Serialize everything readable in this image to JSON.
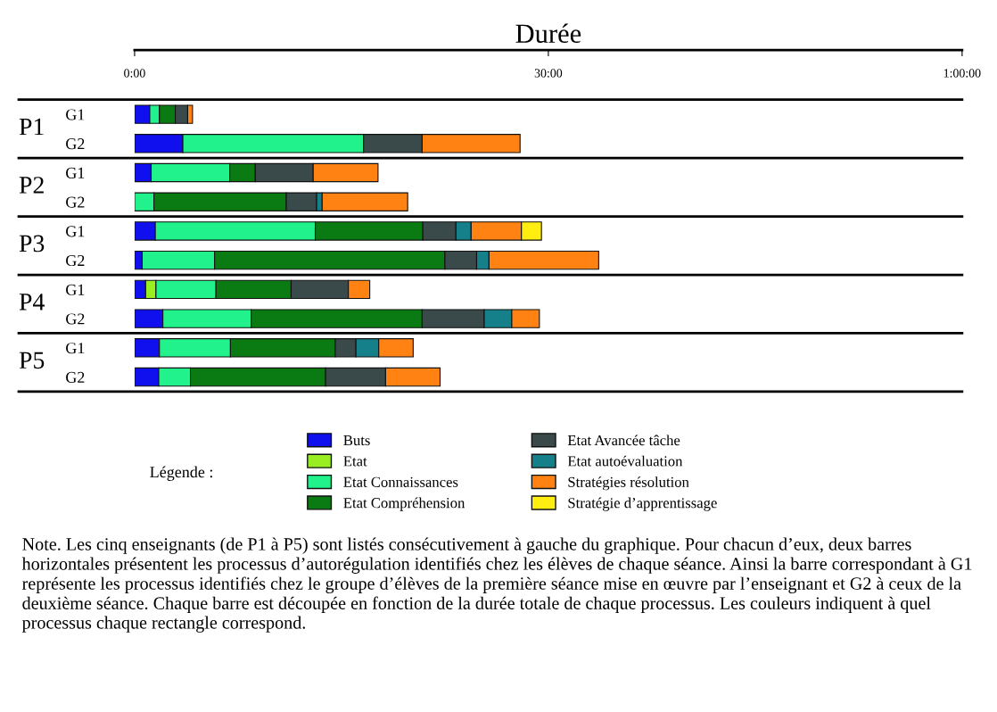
{
  "chart_data": {
    "type": "bar",
    "orientation": "horizontal",
    "stacked": true,
    "xlabel": "Durée",
    "categories": [
      "G1",
      "G2",
      "G1",
      "G2",
      "G1",
      "G2",
      "G1",
      "G2",
      "G1",
      "G2"
    ],
    "series": [
      {
        "name": "Buts",
        "color": "#1010ee",
        "values": [
          1.1,
          3.5,
          1.2,
          null,
          1.5,
          0.55,
          0.8,
          2.05,
          1.8,
          1.75
        ]
      },
      {
        "name": "Etat",
        "color": "#99ee22",
        "values": [
          null,
          null,
          null,
          null,
          null,
          null,
          0.75,
          null,
          null,
          null
        ]
      },
      {
        "name": "Etat Connaissances",
        "color": "#22f28c",
        "values": [
          0.7,
          13.1,
          5.7,
          1.4,
          11.6,
          5.25,
          4.35,
          6.4,
          5.15,
          2.3
        ]
      },
      {
        "name": "Etat Compréhension",
        "color": "#0a7a12",
        "values": [
          1.15,
          null,
          1.85,
          9.6,
          7.8,
          16.7,
          5.45,
          12.4,
          7.6,
          9.8
        ]
      },
      {
        "name": "Etat Avancée tâche",
        "color": "#3a4a4a",
        "values": [
          0.9,
          4.25,
          4.2,
          2.2,
          2.4,
          2.3,
          4.15,
          4.5,
          1.5,
          4.35
        ]
      },
      {
        "name": "Etat autoévaluation",
        "color": "#16808a",
        "values": [
          null,
          null,
          null,
          0.4,
          1.1,
          0.9,
          null,
          2.0,
          1.65,
          null
        ]
      },
      {
        "name": "Stratégies résolution",
        "color": "#ff8212",
        "values": [
          0.35,
          7.1,
          4.7,
          6.2,
          3.65,
          7.95,
          1.55,
          2.0,
          2.5,
          3.95
        ]
      },
      {
        "name": "Stratégie d’apprentissage",
        "color": "#ffee10",
        "values": [
          null,
          null,
          null,
          null,
          1.45,
          null,
          null,
          null,
          null,
          null
        ]
      }
    ],
    "xlim": [
      0,
      60
    ],
    "xticks": [
      {
        "value": 0,
        "label": "0:00"
      },
      {
        "value": 30,
        "label": "30:00"
      },
      {
        "value": 60,
        "label": "1:00:00"
      }
    ],
    "legend": "bottom",
    "legend_title": "Légende :",
    "grid": false,
    "annotations": [
      "P1",
      "P2",
      "P3",
      "P4",
      "P5",
      "Note. Les cinq enseignants (de P1 à P5) sont listés consécutivement à gauche du graphique. Pour chacun d’eux, deux barres horizontales présentent les processus d’autorégulation identifiés chez les élèves de chaque séance. Ainsi la barre correspondant à G1 représente les processus identifiés chez le groupe d’élèves de la première séance mise en œuvre par l’enseignant et G2 à ceux de la deuxième séance. Chaque barre est découpée en fonction de la durée totale de chaque processus. Les couleurs indiquent à quel processus chaque rectangle correspond."
    ]
  }
}
